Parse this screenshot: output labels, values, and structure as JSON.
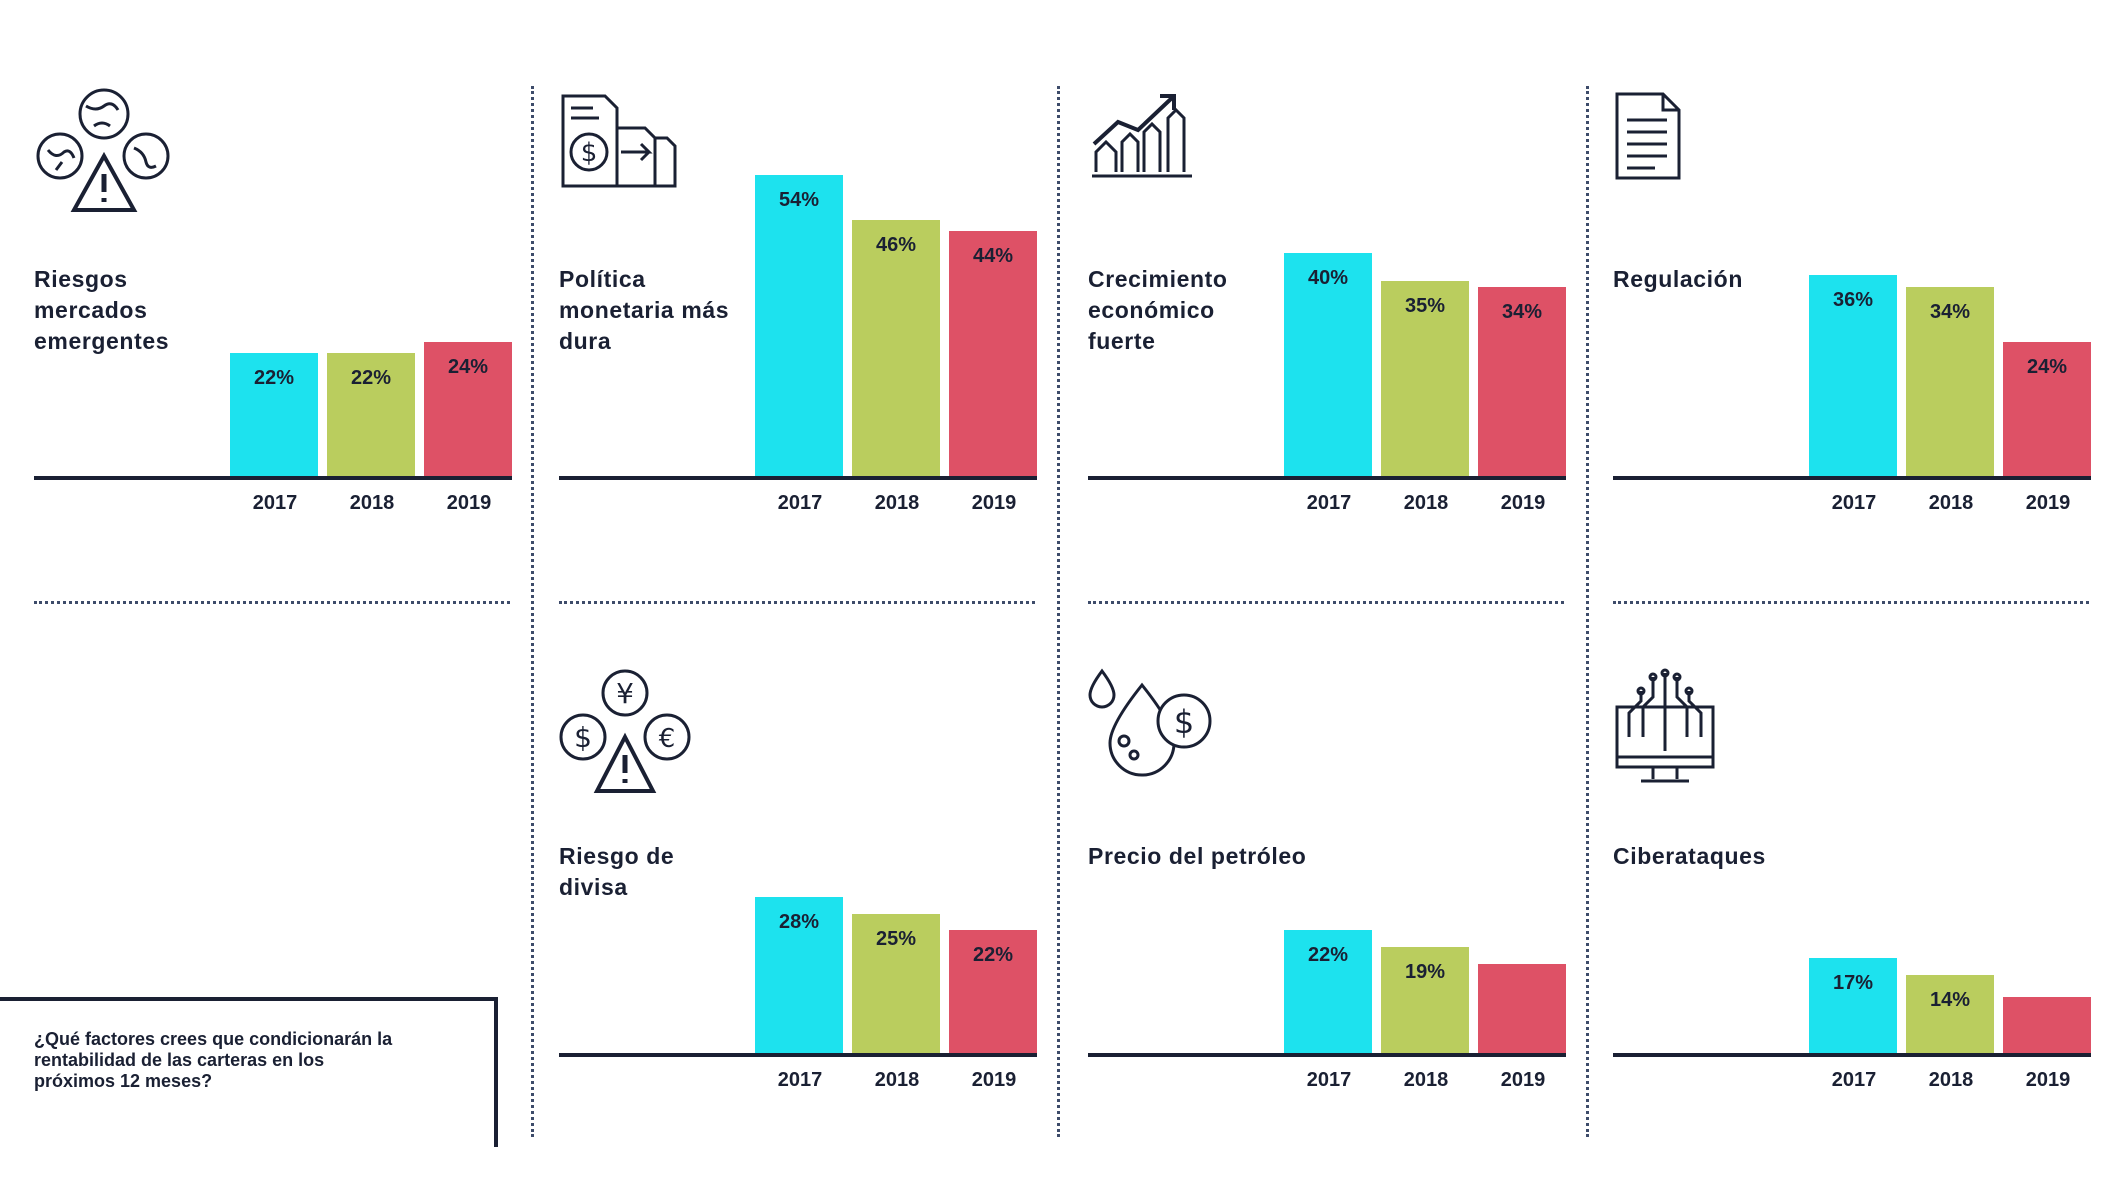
{
  "colors": {
    "y2017": "#1de2ee",
    "y2018": "#bacd5e",
    "y2019": "#de5166",
    "ink": "#1a2033"
  },
  "question": "¿Qué factores crees que condicionarán la rentabilidad de las carteras en los próximos 12 meses?",
  "chart_data": [
    {
      "type": "bar",
      "title": "Riesgos\nmercados emergentes",
      "icon": "globes-warning-icon",
      "categories": [
        "2017",
        "2018",
        "2019"
      ],
      "values": [
        22,
        22,
        24
      ],
      "labels": [
        "22%",
        "22%",
        "24%"
      ],
      "ylim": [
        0,
        60
      ]
    },
    {
      "type": "bar",
      "title": "Política\nmonetaria más\ndura",
      "icon": "document-dollar-icon",
      "categories": [
        "2017",
        "2018",
        "2019"
      ],
      "values": [
        54,
        46,
        44
      ],
      "labels": [
        "54%",
        "46%",
        "44%"
      ],
      "ylim": [
        0,
        60
      ]
    },
    {
      "type": "bar",
      "title": "Crecimiento\neconómico\nfuerte",
      "icon": "growth-chart-icon",
      "categories": [
        "2017",
        "2018",
        "2019"
      ],
      "values": [
        40,
        35,
        34
      ],
      "labels": [
        "40%",
        "35%",
        "34%"
      ],
      "ylim": [
        0,
        60
      ]
    },
    {
      "type": "bar",
      "title": "Regulación",
      "icon": "document-list-icon",
      "categories": [
        "2017",
        "2018",
        "2019"
      ],
      "values": [
        36,
        34,
        24
      ],
      "labels": [
        "36%",
        "34%",
        "24%"
      ],
      "ylim": [
        0,
        60
      ]
    },
    {
      "type": "bar",
      "title": "Riesgo de\ndivisa",
      "icon": "currency-warning-icon",
      "categories": [
        "2017",
        "2018",
        "2019"
      ],
      "values": [
        28,
        25,
        22
      ],
      "labels": [
        "28%",
        "25%",
        "22%"
      ],
      "ylim": [
        0,
        60
      ]
    },
    {
      "type": "bar",
      "title": "Precio del petróleo",
      "icon": "oil-dollar-icon",
      "categories": [
        "2017",
        "2018",
        "2019"
      ],
      "values": [
        22,
        19,
        16
      ],
      "labels": [
        "22%",
        "19%",
        ""
      ],
      "ylim": [
        0,
        60
      ]
    },
    {
      "type": "bar",
      "title": "Ciberataques",
      "icon": "circuit-monitor-icon",
      "categories": [
        "2017",
        "2018",
        "2019"
      ],
      "values": [
        17,
        14,
        10
      ],
      "labels": [
        "17%",
        "14%",
        ""
      ],
      "ylim": [
        0,
        60
      ]
    }
  ]
}
